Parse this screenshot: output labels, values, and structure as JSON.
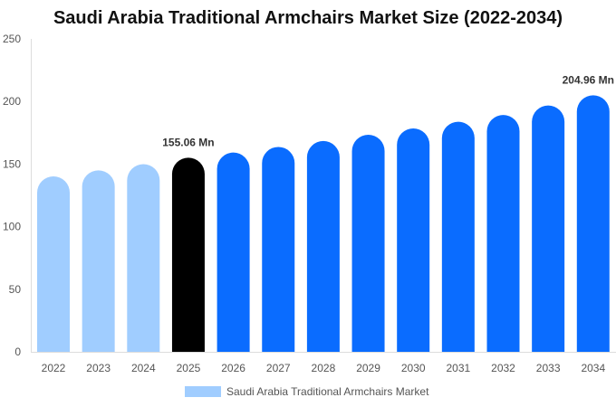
{
  "chart_data": {
    "type": "bar",
    "title": "Saudi Arabia Traditional Armchairs Market Size (2022-2034)",
    "categories": [
      "2022",
      "2023",
      "2024",
      "2025",
      "2026",
      "2027",
      "2028",
      "2029",
      "2030",
      "2031",
      "2032",
      "2033",
      "2034"
    ],
    "series": [
      {
        "name": "Saudi Arabia Traditional Armchairs Market",
        "values": [
          140.2,
          145.0,
          149.9,
          155.06,
          159.2,
          163.7,
          168.4,
          173.4,
          178.5,
          183.8,
          189.2,
          196.8,
          204.96
        ]
      }
    ],
    "data_labels": {
      "3": "155.06 Mn",
      "12": "204.96 Mn"
    },
    "ylim": [
      0,
      250
    ],
    "yticks": [
      0,
      50,
      100,
      150,
      200,
      250
    ],
    "legend": "bottom",
    "grid": false,
    "colors": {
      "historical": "#a0cdff",
      "base_year": "#000000",
      "forecast": "#0a6cff"
    },
    "historical_count": 3,
    "base_index": 3
  }
}
